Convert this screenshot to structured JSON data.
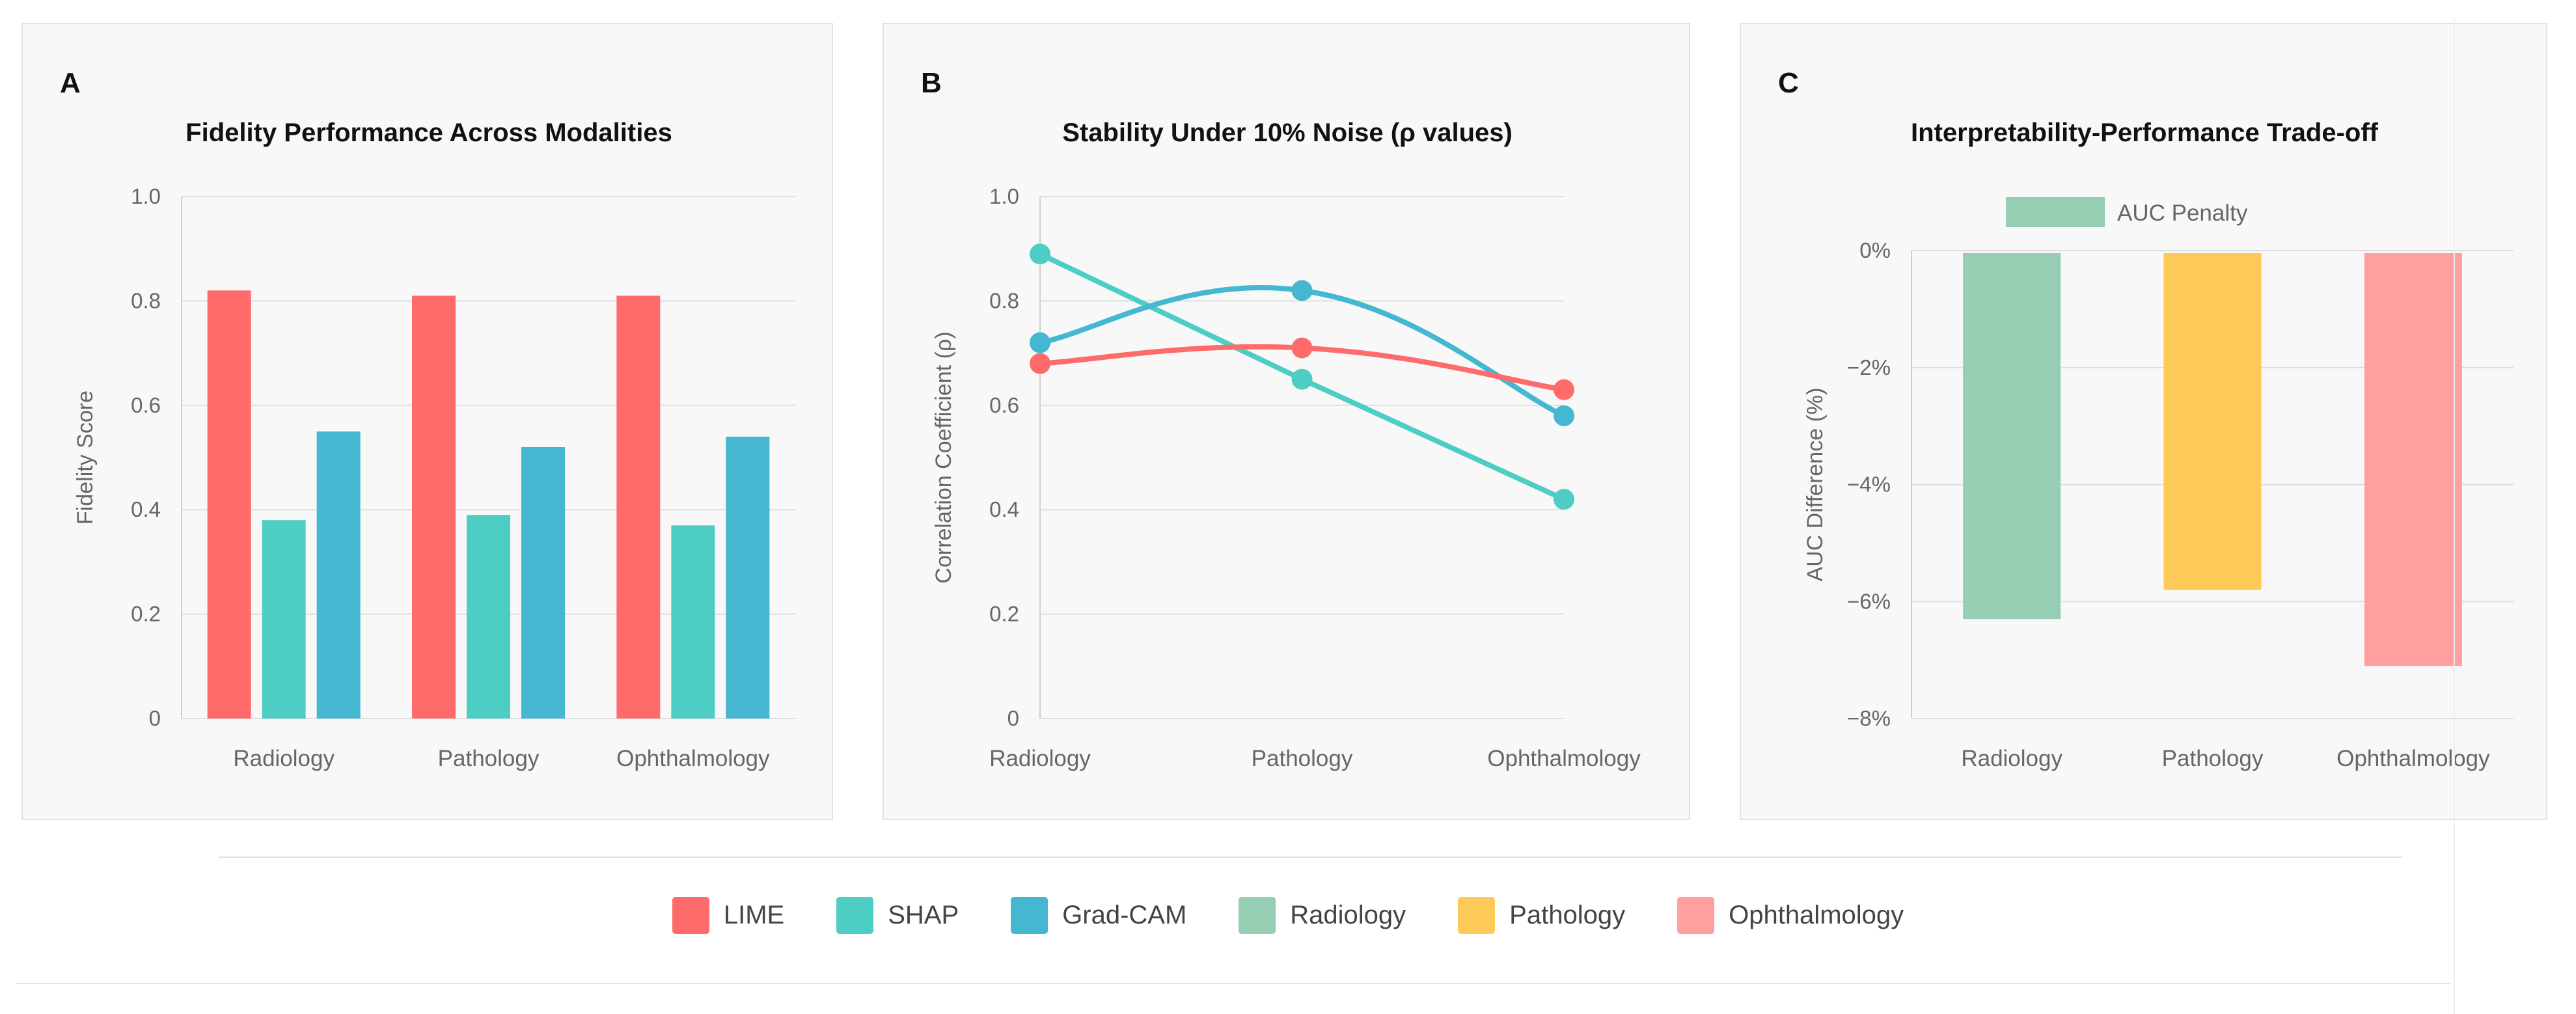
{
  "colors": {
    "LIME": "#ff6b6b",
    "SHAP": "#4ecdc4",
    "Grad-CAM": "#45b7d1",
    "Radiology": "#96ceb4",
    "Pathology": "#feca57",
    "Ophthalmology": "#ff9f9f"
  },
  "panels": {
    "a": {
      "label": "A",
      "title": "Fidelity Performance Across Modalities"
    },
    "b": {
      "label": "B",
      "title": "Stability Under 10% Noise (ρ values)"
    },
    "c": {
      "label": "C",
      "title": "Interpretability-Performance Trade-off"
    }
  },
  "chart_data": [
    {
      "type": "bar",
      "title": "Fidelity Performance Across Modalities",
      "xlabel": "",
      "ylabel": "Fidelity Score",
      "ylim": [
        0,
        1
      ],
      "yticks": [
        "0",
        "0.2",
        "0.4",
        "0.6",
        "0.8",
        "1.0"
      ],
      "categories": [
        "Radiology",
        "Pathology",
        "Ophthalmology"
      ],
      "series": [
        {
          "name": "LIME",
          "values": [
            0.82,
            0.81,
            0.81
          ]
        },
        {
          "name": "SHAP",
          "values": [
            0.38,
            0.39,
            0.37
          ]
        },
        {
          "name": "Grad-CAM",
          "values": [
            0.55,
            0.52,
            0.54
          ]
        }
      ]
    },
    {
      "type": "line",
      "title": "Stability Under 10% Noise (ρ values)",
      "xlabel": "",
      "ylabel": "Correlation Coefficient (ρ)",
      "ylim": [
        0,
        1
      ],
      "yticks": [
        "0",
        "0.2",
        "0.4",
        "0.6",
        "0.8",
        "1.0"
      ],
      "categories": [
        "Radiology",
        "Pathology",
        "Ophthalmology"
      ],
      "series": [
        {
          "name": "LIME",
          "values": [
            0.68,
            0.71,
            0.63
          ]
        },
        {
          "name": "SHAP",
          "values": [
            0.89,
            0.65,
            0.42
          ]
        },
        {
          "name": "Grad-CAM",
          "values": [
            0.72,
            0.82,
            0.58
          ]
        }
      ]
    },
    {
      "type": "bar",
      "title": "Interpretability-Performance Trade-off",
      "xlabel": "",
      "ylabel": "AUC Difference (%)",
      "ylim": [
        -8,
        0
      ],
      "yticks": [
        "−8%",
        "−6%",
        "−4%",
        "−2%",
        "0%"
      ],
      "categories": [
        "Radiology",
        "Pathology",
        "Ophthalmology"
      ],
      "series": [
        {
          "name": "AUC Penalty",
          "values": [
            -6.3,
            -5.8,
            -7.1
          ]
        }
      ]
    }
  ],
  "legend": {
    "items": [
      {
        "key": "LIME",
        "label": "LIME"
      },
      {
        "key": "SHAP",
        "label": "SHAP"
      },
      {
        "key": "Grad-CAM",
        "label": "Grad-CAM"
      },
      {
        "key": "Radiology",
        "label": "Radiology"
      },
      {
        "key": "Pathology",
        "label": "Pathology"
      },
      {
        "key": "Ophthalmology",
        "label": "Ophthalmology"
      }
    ]
  }
}
